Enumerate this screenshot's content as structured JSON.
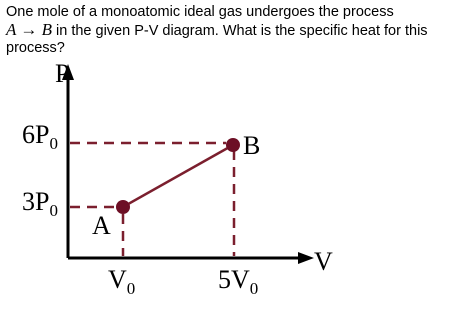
{
  "question": {
    "line1": "One mole of a monoatomic ideal gas undergoes the process",
    "math": "A → B",
    "line2": "in the given P-V diagram. What is the specific heat for this",
    "line3": "process?"
  },
  "diagram": {
    "y_axis": "P",
    "x_axis": "V",
    "p_labels": [
      {
        "main": "6P",
        "sub": "0"
      },
      {
        "main": "3P",
        "sub": "0"
      }
    ],
    "v_labels": [
      {
        "main": "V",
        "sub": "0"
      },
      {
        "main": "5V",
        "sub": "0"
      }
    ],
    "points": [
      "A",
      "B"
    ]
  }
}
